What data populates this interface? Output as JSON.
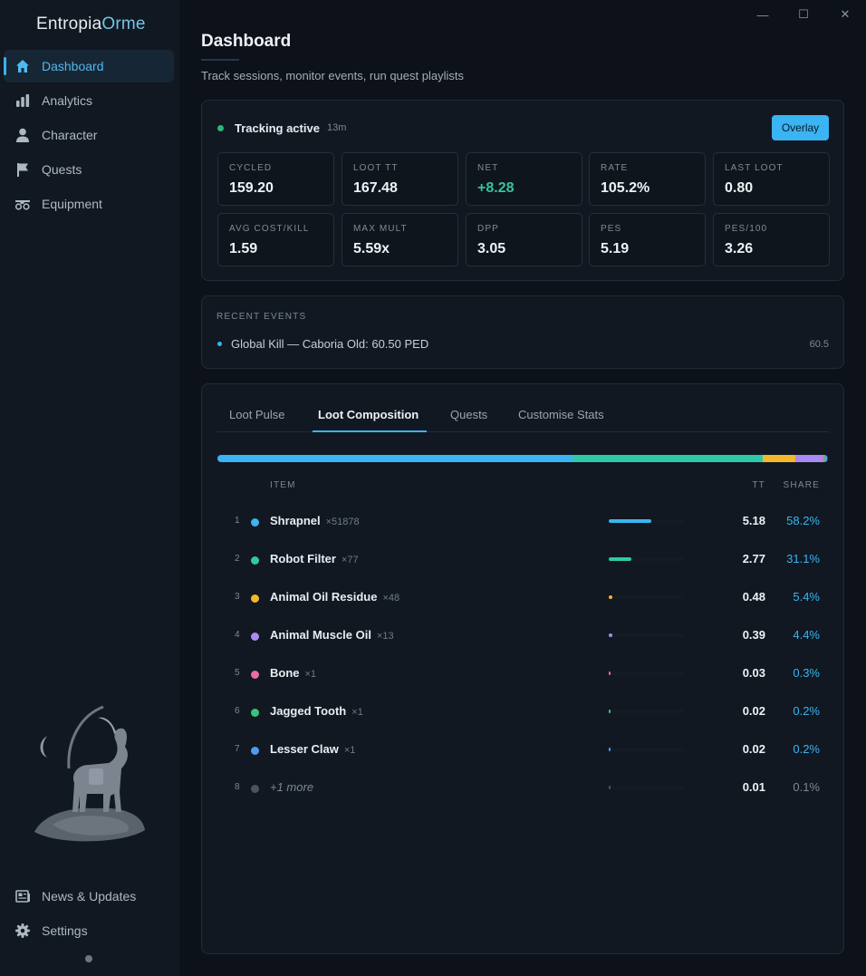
{
  "app": {
    "brand_part1": "Entropia",
    "brand_part2": "Orme"
  },
  "window": {
    "minimize": "—",
    "maximize": "☐",
    "close": "✕"
  },
  "sidebar": {
    "items": [
      {
        "label": "Dashboard",
        "icon": "home-icon",
        "active": true
      },
      {
        "label": "Analytics",
        "icon": "bar-chart-icon"
      },
      {
        "label": "Character",
        "icon": "user-icon"
      },
      {
        "label": "Quests",
        "icon": "flag-icon"
      },
      {
        "label": "Equipment",
        "icon": "equipment-icon"
      }
    ],
    "bottom": [
      {
        "label": "News & Updates",
        "icon": "news-icon"
      },
      {
        "label": "Settings",
        "icon": "gear-icon"
      }
    ]
  },
  "page": {
    "title": "Dashboard",
    "subtitle": "Track sessions, monitor events, run quest playlists"
  },
  "tracking": {
    "label": "Tracking active",
    "elapsed": "13m",
    "overlay_button": "Overlay",
    "status_color": "#2fb37c"
  },
  "stats": [
    {
      "label": "CYCLED",
      "value": "159.20"
    },
    {
      "label": "LOOT TT",
      "value": "167.48"
    },
    {
      "label": "NET",
      "value": "+8.28"
    },
    {
      "label": "RATE",
      "value": "105.2%"
    },
    {
      "label": "LAST LOOT",
      "value": "0.80"
    },
    {
      "label": "AVG COST/KILL",
      "value": "1.59"
    },
    {
      "label": "MAX MULT",
      "value": "5.59x"
    },
    {
      "label": "DPP",
      "value": "3.05"
    },
    {
      "label": "PES",
      "value": "5.19"
    },
    {
      "label": "PES/100",
      "value": "3.26"
    }
  ],
  "events": {
    "header": "RECENT EVENTS",
    "items": [
      {
        "text": "Global Kill — Caboria Old: 60.50 PED",
        "value": "60.5"
      }
    ]
  },
  "tabs": [
    "Loot Pulse",
    "Loot Composition",
    "Quests",
    "Customise Stats"
  ],
  "active_tab": "Loot Composition",
  "composition": {
    "headers": {
      "item": "ITEM",
      "tt": "TT",
      "share": "SHARE"
    },
    "rows": [
      {
        "rank": "1",
        "name": "Shrapnel",
        "qty": "×51878",
        "tt": "5.18",
        "share": "58.2%",
        "share_value": 58.2,
        "color": "#3ab4f2"
      },
      {
        "rank": "2",
        "name": "Robot Filter",
        "qty": "×77",
        "tt": "2.77",
        "share": "31.1%",
        "share_value": 31.1,
        "color": "#2ec9a8"
      },
      {
        "rank": "3",
        "name": "Animal Oil Residue",
        "qty": "×48",
        "tt": "0.48",
        "share": "5.4%",
        "share_value": 5.4,
        "color": "#f2b72a"
      },
      {
        "rank": "4",
        "name": "Animal Muscle Oil",
        "qty": "×13",
        "tt": "0.39",
        "share": "4.4%",
        "share_value": 4.4,
        "color": "#a98af2"
      },
      {
        "rank": "5",
        "name": "Bone",
        "qty": "×1",
        "tt": "0.03",
        "share": "0.3%",
        "share_value": 0.3,
        "color": "#ec6aa8"
      },
      {
        "rank": "6",
        "name": "Jagged Tooth",
        "qty": "×1",
        "tt": "0.02",
        "share": "0.2%",
        "share_value": 0.2,
        "color": "#36c47a"
      },
      {
        "rank": "7",
        "name": "Lesser Claw",
        "qty": "×1",
        "tt": "0.02",
        "share": "0.2%",
        "share_value": 0.2,
        "color": "#4d9cf0"
      },
      {
        "rank": "8",
        "name": "+1 more",
        "qty": "",
        "tt": "0.01",
        "share": "0.1%",
        "share_value": 0.1,
        "color": "#4a5563",
        "muted": true
      }
    ]
  }
}
